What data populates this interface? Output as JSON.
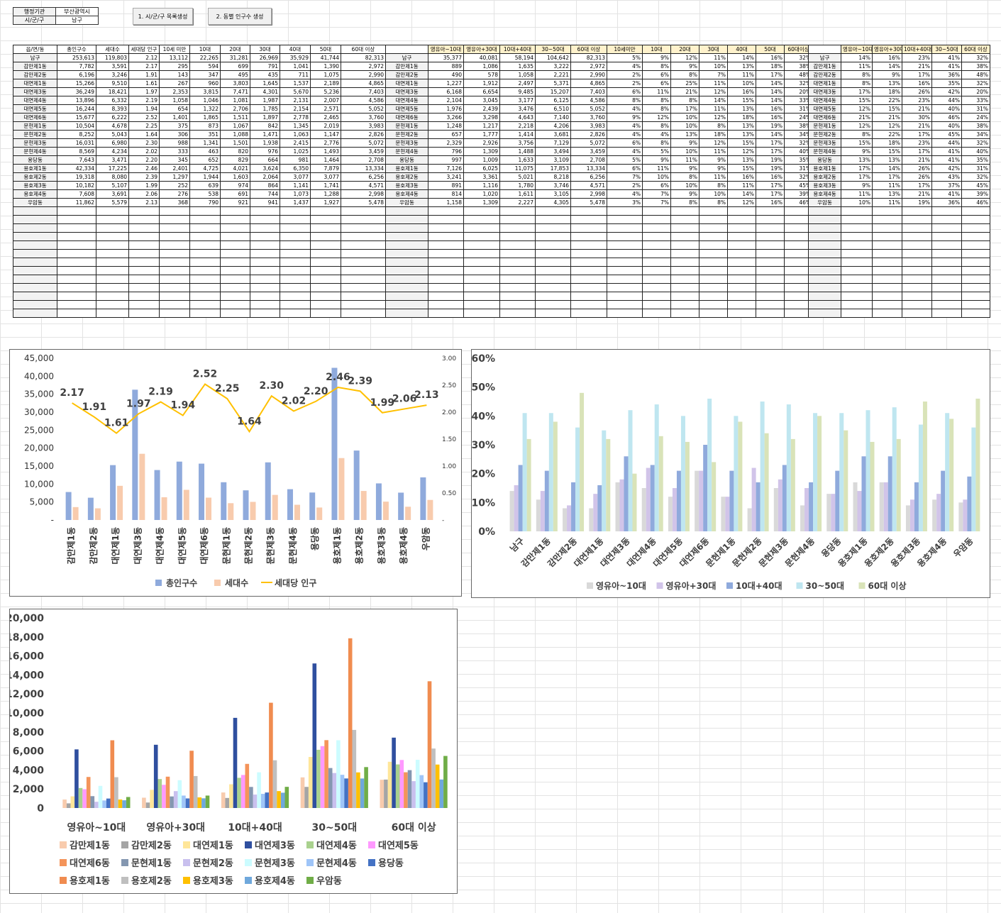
{
  "info": {
    "label_org": "행정기관",
    "value_org": "부산광역시",
    "label_gu": "시/군/구",
    "value_gu": "남구"
  },
  "buttons": {
    "list": "1. 시/군/구 목록생성",
    "pop": "2. 동별 인구수 생성"
  },
  "table1": {
    "headers": [
      "읍/면/동",
      "총인구수",
      "세대수",
      "세대당 인구",
      "10세 미만",
      "10대",
      "20대",
      "30대",
      "40대",
      "50대",
      "60대 이상"
    ],
    "rows": [
      [
        "남구",
        "253,613",
        "119,803",
        "2.12",
        "13,112",
        "22,265",
        "31,281",
        "26,969",
        "35,929",
        "41,744",
        "82,313"
      ],
      [
        "감만제1동",
        "7,782",
        "3,591",
        "2.17",
        "295",
        "594",
        "699",
        "791",
        "1,041",
        "1,390",
        "2,972"
      ],
      [
        "감만제2동",
        "6,196",
        "3,246",
        "1.91",
        "143",
        "347",
        "495",
        "435",
        "711",
        "1,075",
        "2,990"
      ],
      [
        "대연제1동",
        "15,266",
        "9,510",
        "1.61",
        "267",
        "960",
        "3,803",
        "1,645",
        "1,537",
        "2,189",
        "4,865"
      ],
      [
        "대연제3동",
        "36,249",
        "18,421",
        "1.97",
        "2,353",
        "3,815",
        "7,471",
        "4,301",
        "5,670",
        "5,236",
        "7,403"
      ],
      [
        "대연제4동",
        "13,896",
        "6,332",
        "2.19",
        "1,058",
        "1,046",
        "1,081",
        "1,987",
        "2,131",
        "2,007",
        "4,586"
      ],
      [
        "대연제5동",
        "16,244",
        "8,393",
        "1.94",
        "654",
        "1,322",
        "2,706",
        "1,785",
        "2,154",
        "2,571",
        "5,052"
      ],
      [
        "대연제6동",
        "15,677",
        "6,222",
        "2.52",
        "1,401",
        "1,865",
        "1,511",
        "1,897",
        "2,778",
        "2,465",
        "3,760"
      ],
      [
        "문현제1동",
        "10,504",
        "4,678",
        "2.25",
        "375",
        "873",
        "1,067",
        "842",
        "1,345",
        "2,019",
        "3,983"
      ],
      [
        "문현제2동",
        "8,252",
        "5,043",
        "1.64",
        "306",
        "351",
        "1,088",
        "1,471",
        "1,063",
        "1,147",
        "2,826"
      ],
      [
        "문현제3동",
        "16,031",
        "6,980",
        "2.30",
        "988",
        "1,341",
        "1,501",
        "1,938",
        "2,415",
        "2,776",
        "5,072"
      ],
      [
        "문현제4동",
        "8,569",
        "4,234",
        "2.02",
        "333",
        "463",
        "820",
        "976",
        "1,025",
        "1,493",
        "3,459"
      ],
      [
        "용당동",
        "7,643",
        "3,471",
        "2.20",
        "345",
        "652",
        "829",
        "664",
        "981",
        "1,464",
        "2,708"
      ],
      [
        "용호제1동",
        "42,334",
        "17,225",
        "2.46",
        "2,401",
        "4,725",
        "4,021",
        "3,624",
        "6,350",
        "7,879",
        "13,334"
      ],
      [
        "용호제2동",
        "19,318",
        "8,080",
        "2.39",
        "1,297",
        "1,944",
        "1,603",
        "2,064",
        "3,077",
        "3,077",
        "6,256"
      ],
      [
        "용호제3동",
        "10,182",
        "5,107",
        "1.99",
        "252",
        "639",
        "974",
        "864",
        "1,141",
        "1,741",
        "4,571"
      ],
      [
        "용호제4동",
        "7,608",
        "3,691",
        "2.06",
        "276",
        "538",
        "691",
        "744",
        "1,073",
        "1,288",
        "2,998"
      ],
      [
        "우암동",
        "11,862",
        "5,579",
        "2.13",
        "368",
        "790",
        "921",
        "941",
        "1,437",
        "1,927",
        "5,478"
      ]
    ]
  },
  "table2": {
    "headers": [
      "",
      "영유아~10대",
      "영유아+30대",
      "10대+40대",
      "30~50대",
      "60대 이상",
      "10세미만",
      "10대",
      "20대",
      "30대",
      "40대",
      "50대",
      "60대이상"
    ],
    "rows": [
      [
        "남구",
        "35,377",
        "40,081",
        "58,194",
        "104,642",
        "82,313",
        "5%",
        "9%",
        "12%",
        "11%",
        "14%",
        "16%",
        "32%"
      ],
      [
        "감만제1동",
        "889",
        "1,086",
        "1,635",
        "3,222",
        "2,972",
        "4%",
        "8%",
        "9%",
        "10%",
        "13%",
        "18%",
        "38%"
      ],
      [
        "감만제2동",
        "490",
        "578",
        "1,058",
        "2,221",
        "2,990",
        "2%",
        "6%",
        "8%",
        "7%",
        "11%",
        "17%",
        "48%"
      ],
      [
        "대연제1동",
        "1,227",
        "1,912",
        "2,497",
        "5,371",
        "4,865",
        "2%",
        "6%",
        "25%",
        "11%",
        "10%",
        "14%",
        "32%"
      ],
      [
        "대연제3동",
        "6,168",
        "6,654",
        "9,485",
        "15,207",
        "7,403",
        "6%",
        "11%",
        "21%",
        "12%",
        "16%",
        "14%",
        "20%"
      ],
      [
        "대연제4동",
        "2,104",
        "3,045",
        "3,177",
        "6,125",
        "4,586",
        "8%",
        "8%",
        "8%",
        "14%",
        "15%",
        "14%",
        "33%"
      ],
      [
        "대연제5동",
        "1,976",
        "2,439",
        "3,476",
        "6,510",
        "5,052",
        "4%",
        "8%",
        "17%",
        "11%",
        "13%",
        "16%",
        "31%"
      ],
      [
        "대연제6동",
        "3,266",
        "3,298",
        "4,643",
        "7,140",
        "3,760",
        "9%",
        "12%",
        "10%",
        "12%",
        "18%",
        "16%",
        "24%"
      ],
      [
        "문현제1동",
        "1,248",
        "1,217",
        "2,218",
        "4,206",
        "3,983",
        "4%",
        "8%",
        "10%",
        "8%",
        "13%",
        "19%",
        "38%"
      ],
      [
        "문현제2동",
        "657",
        "1,777",
        "1,414",
        "3,681",
        "2,826",
        "4%",
        "4%",
        "13%",
        "18%",
        "13%",
        "14%",
        "34%"
      ],
      [
        "문현제3동",
        "2,329",
        "2,926",
        "3,756",
        "7,129",
        "5,072",
        "6%",
        "8%",
        "9%",
        "12%",
        "15%",
        "17%",
        "32%"
      ],
      [
        "문현제4동",
        "796",
        "1,309",
        "1,488",
        "3,494",
        "3,459",
        "4%",
        "5%",
        "10%",
        "11%",
        "12%",
        "17%",
        "40%"
      ],
      [
        "용당동",
        "997",
        "1,009",
        "1,633",
        "3,109",
        "2,708",
        "5%",
        "9%",
        "11%",
        "9%",
        "13%",
        "19%",
        "35%"
      ],
      [
        "용호제1동",
        "7,126",
        "6,025",
        "11,075",
        "17,853",
        "13,334",
        "6%",
        "11%",
        "9%",
        "9%",
        "15%",
        "19%",
        "31%"
      ],
      [
        "용호제2동",
        "3,241",
        "3,361",
        "5,021",
        "8,218",
        "6,256",
        "7%",
        "10%",
        "8%",
        "11%",
        "16%",
        "16%",
        "32%"
      ],
      [
        "용호제3동",
        "891",
        "1,116",
        "1,780",
        "3,746",
        "4,571",
        "2%",
        "6%",
        "10%",
        "8%",
        "11%",
        "17%",
        "45%"
      ],
      [
        "용호제4동",
        "814",
        "1,020",
        "1,611",
        "3,105",
        "2,998",
        "4%",
        "7%",
        "9%",
        "10%",
        "14%",
        "17%",
        "39%"
      ],
      [
        "우암동",
        "1,158",
        "1,309",
        "2,227",
        "4,305",
        "5,478",
        "3%",
        "7%",
        "8%",
        "8%",
        "12%",
        "16%",
        "46%"
      ]
    ]
  },
  "table3": {
    "headers": [
      "",
      "영유아~10대",
      "영유아+30대",
      "10대+40대",
      "30~50대",
      "60대 이상"
    ],
    "rows": [
      [
        "남구",
        "14%",
        "16%",
        "23%",
        "41%",
        "32%"
      ],
      [
        "감만제1동",
        "11%",
        "14%",
        "21%",
        "41%",
        "38%"
      ],
      [
        "감만제2동",
        "8%",
        "9%",
        "17%",
        "36%",
        "48%"
      ],
      [
        "대연제1동",
        "8%",
        "13%",
        "16%",
        "35%",
        "32%"
      ],
      [
        "대연제3동",
        "17%",
        "18%",
        "26%",
        "42%",
        "20%"
      ],
      [
        "대연제4동",
        "15%",
        "22%",
        "23%",
        "44%",
        "33%"
      ],
      [
        "대연제5동",
        "12%",
        "15%",
        "21%",
        "40%",
        "31%"
      ],
      [
        "대연제6동",
        "21%",
        "21%",
        "30%",
        "46%",
        "24%"
      ],
      [
        "문현제1동",
        "12%",
        "12%",
        "21%",
        "40%",
        "38%"
      ],
      [
        "문현제2동",
        "8%",
        "22%",
        "17%",
        "45%",
        "34%"
      ],
      [
        "문현제3동",
        "15%",
        "18%",
        "23%",
        "44%",
        "32%"
      ],
      [
        "문현제4동",
        "9%",
        "15%",
        "17%",
        "41%",
        "40%"
      ],
      [
        "용당동",
        "13%",
        "13%",
        "21%",
        "41%",
        "35%"
      ],
      [
        "용호제1동",
        "17%",
        "14%",
        "26%",
        "42%",
        "31%"
      ],
      [
        "용호제2동",
        "17%",
        "17%",
        "26%",
        "43%",
        "32%"
      ],
      [
        "용호제3동",
        "9%",
        "11%",
        "17%",
        "37%",
        "45%"
      ],
      [
        "용호제4동",
        "11%",
        "13%",
        "21%",
        "41%",
        "39%"
      ],
      [
        "우암동",
        "10%",
        "11%",
        "19%",
        "36%",
        "46%"
      ]
    ]
  },
  "chart_data": [
    {
      "type": "bar",
      "categories": [
        "감만제1동",
        "감만제2동",
        "대연제1동",
        "대연제3동",
        "대연제4동",
        "대연제5동",
        "대연제6동",
        "문현제1동",
        "문현제2동",
        "문현제3동",
        "문현제4동",
        "용당동",
        "용호제1동",
        "용호제2동",
        "용호제3동",
        "용호제4동",
        "우암동"
      ],
      "series": [
        {
          "name": "총인구수",
          "color": "#8faadc",
          "axis": "left",
          "values": [
            7782,
            6196,
            15266,
            36249,
            13896,
            16244,
            15677,
            10504,
            8252,
            16031,
            8569,
            7643,
            42334,
            19318,
            10182,
            7608,
            11862
          ]
        },
        {
          "name": "세대수",
          "color": "#f8cbad",
          "axis": "left",
          "values": [
            3591,
            3246,
            9510,
            18421,
            6332,
            8393,
            6222,
            4678,
            5043,
            6980,
            4234,
            3471,
            17225,
            8080,
            5107,
            3691,
            5579
          ]
        },
        {
          "name": "세대당 인구",
          "color": "#ffc000",
          "axis": "right",
          "type": "line",
          "values": [
            2.17,
            1.91,
            1.61,
            1.97,
            2.19,
            1.94,
            2.52,
            2.25,
            1.64,
            2.3,
            2.02,
            2.2,
            2.46,
            2.39,
            1.99,
            2.06,
            2.13
          ]
        }
      ],
      "y_left": {
        "min": 0,
        "max": 45000,
        "ticks": [
          "-",
          "5,000",
          "10,000",
          "15,000",
          "20,000",
          "25,000",
          "30,000",
          "35,000",
          "40,000",
          "45,000"
        ]
      },
      "y_right": {
        "min": 0,
        "max": 3.0,
        "ticks": [
          "-",
          "0.50",
          "1.00",
          "1.50",
          "2.00",
          "2.50",
          "3.00"
        ]
      },
      "data_labels": [
        "2.17",
        "1.91",
        "1.61",
        "1.97",
        "2.19",
        "1.94",
        "2.52",
        "2.25",
        "1.64",
        "2.30",
        "2.02",
        "2.20",
        "2.46",
        "2.39",
        "1.99",
        "2.06",
        "2.13"
      ],
      "legend": "bottom"
    },
    {
      "type": "bar",
      "categories": [
        "남구",
        "감만제1동",
        "감만제2동",
        "대연제1동",
        "대연제3동",
        "대연제4동",
        "대연제5동",
        "대연제6동",
        "문현제1동",
        "문현제2동",
        "문현제3동",
        "문현제4동",
        "용당동",
        "용호제1동",
        "용호제2동",
        "용호제3동",
        "용호제4동",
        "우암동"
      ],
      "series": [
        {
          "name": "영유아~10대",
          "color": "#d9d9d9",
          "values": [
            14,
            11,
            8,
            8,
            17,
            15,
            12,
            21,
            12,
            8,
            15,
            9,
            13,
            17,
            17,
            9,
            11,
            10
          ]
        },
        {
          "name": "영유아+30대",
          "color": "#d1c4e9",
          "values": [
            16,
            14,
            9,
            13,
            18,
            22,
            15,
            21,
            12,
            22,
            18,
            15,
            13,
            14,
            17,
            11,
            13,
            11
          ]
        },
        {
          "name": "10대+40대",
          "color": "#8faadc",
          "values": [
            23,
            21,
            17,
            16,
            26,
            23,
            21,
            30,
            21,
            17,
            23,
            17,
            21,
            26,
            26,
            17,
            21,
            19
          ]
        },
        {
          "name": "30~50대",
          "color": "#bfe6f0",
          "values": [
            41,
            41,
            36,
            35,
            42,
            44,
            40,
            46,
            40,
            45,
            44,
            41,
            41,
            42,
            43,
            37,
            41,
            36
          ]
        },
        {
          "name": "60대 이상",
          "color": "#d9e3b8",
          "values": [
            32,
            38,
            48,
            32,
            20,
            33,
            31,
            24,
            38,
            34,
            32,
            40,
            35,
            31,
            32,
            45,
            39,
            46
          ]
        }
      ],
      "y": {
        "min": 0,
        "max": 60,
        "ticks": [
          "0%",
          "10%",
          "20%",
          "30%",
          "40%",
          "50%",
          "60%"
        ]
      },
      "legend": "bottom"
    },
    {
      "type": "bar",
      "categories": [
        "영유아~10대",
        "영유아+30대",
        "10대+40대",
        "30~50대",
        "60대 이상"
      ],
      "series": [
        {
          "name": "감만제1동",
          "color": "#f8cbad",
          "values": [
            889,
            1086,
            1635,
            3222,
            2972
          ]
        },
        {
          "name": "감만제2동",
          "color": "#a5a5a5",
          "values": [
            490,
            578,
            1058,
            2221,
            2990
          ]
        },
        {
          "name": "대연제1동",
          "color": "#ffe699",
          "values": [
            1227,
            1912,
            2497,
            5371,
            4865
          ]
        },
        {
          "name": "대연제3동",
          "color": "#2f4f9f",
          "values": [
            6168,
            6654,
            9485,
            15207,
            7403
          ]
        },
        {
          "name": "대연제4동",
          "color": "#a9d18e",
          "values": [
            2104,
            3045,
            3177,
            6125,
            4586
          ]
        },
        {
          "name": "대연제5동",
          "color": "#ff99ff",
          "values": [
            1976,
            2439,
            3476,
            6510,
            5052
          ]
        },
        {
          "name": "대연제6동",
          "color": "#f4945a",
          "values": [
            3266,
            3298,
            4643,
            7140,
            3760
          ]
        },
        {
          "name": "문현제1동",
          "color": "#8497b0",
          "values": [
            1248,
            1217,
            2218,
            4206,
            3983
          ]
        },
        {
          "name": "문현제2동",
          "color": "#c9c0ee",
          "values": [
            657,
            1777,
            1414,
            3681,
            2826
          ]
        },
        {
          "name": "문현제3동",
          "color": "#ccfcff",
          "values": [
            2329,
            2926,
            3756,
            7129,
            5072
          ]
        },
        {
          "name": "문현제4동",
          "color": "#9fc5f8",
          "values": [
            796,
            1309,
            1488,
            3494,
            3459
          ]
        },
        {
          "name": "용당동",
          "color": "#4472c4",
          "values": [
            997,
            1009,
            1633,
            3109,
            2708
          ]
        },
        {
          "name": "용호제1동",
          "color": "#f08c50",
          "values": [
            7126,
            6025,
            11075,
            17853,
            13334
          ]
        },
        {
          "name": "용호제2동",
          "color": "#bfbfbf",
          "values": [
            3241,
            3361,
            5021,
            8218,
            6256
          ]
        },
        {
          "name": "용호제3동",
          "color": "#ffc000",
          "values": [
            891,
            1116,
            1780,
            3746,
            4571
          ]
        },
        {
          "name": "용호제4동",
          "color": "#6fa8dc",
          "values": [
            814,
            1020,
            1611,
            3105,
            2998
          ]
        },
        {
          "name": "우암동",
          "color": "#70ad47",
          "values": [
            1158,
            1309,
            2227,
            4305,
            5478
          ]
        }
      ],
      "y": {
        "min": 0,
        "max": 20000,
        "ticks": [
          "0",
          "2,000",
          "4,000",
          "6,000",
          "8,000",
          "10,000",
          "12,000",
          "14,000",
          "16,000",
          "18,000",
          "20,000"
        ]
      },
      "legend": "bottom"
    }
  ]
}
